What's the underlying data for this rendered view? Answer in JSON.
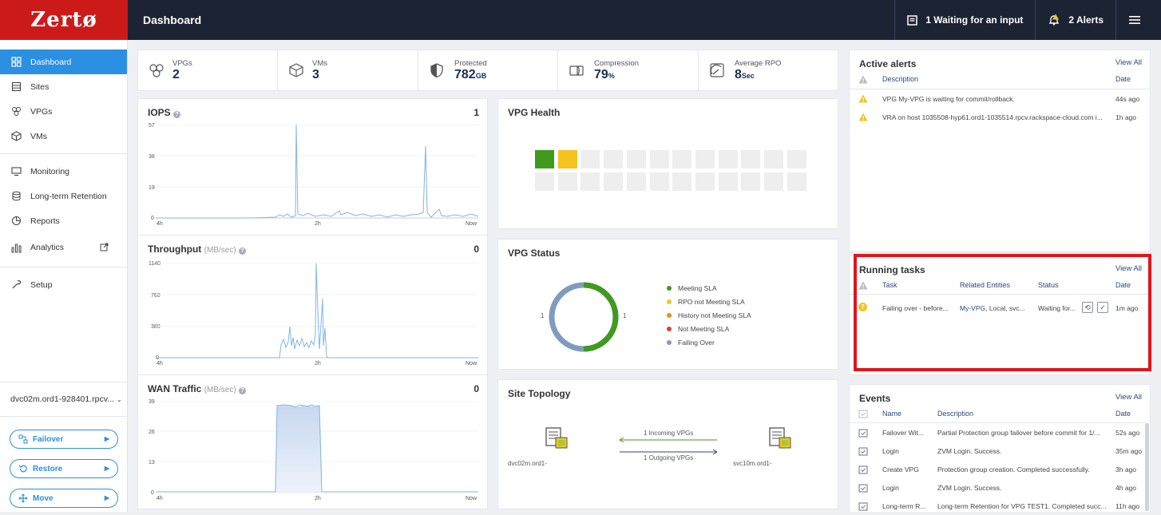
{
  "brand": {
    "logo": "Zertø",
    "color": "#cc1a1a"
  },
  "header": {
    "title": "Dashboard",
    "waiting": "1 Waiting for an input",
    "alerts": "2 Alerts"
  },
  "sidebar": {
    "items": [
      {
        "label": "Dashboard",
        "icon": "dashboard-icon",
        "active": true
      },
      {
        "label": "Sites",
        "icon": "sites-icon"
      },
      {
        "label": "VPGs",
        "icon": "vpgs-icon"
      },
      {
        "label": "VMs",
        "icon": "vms-icon"
      },
      {
        "label": "Monitoring",
        "icon": "monitor-icon"
      },
      {
        "label": "Long-term Retention",
        "icon": "database-icon"
      },
      {
        "label": "Reports",
        "icon": "reports-icon"
      },
      {
        "label": "Analytics",
        "icon": "analytics-icon"
      },
      {
        "label": "Setup",
        "icon": "wrench-icon"
      }
    ],
    "site": "dvc02m.ord1-928401.rpcv...",
    "buttons": {
      "failover": "Failover",
      "restore": "Restore",
      "move": "Move"
    }
  },
  "stats": [
    {
      "label": "VPGs",
      "value": "2",
      "unit": ""
    },
    {
      "label": "VMs",
      "value": "3",
      "unit": ""
    },
    {
      "label": "Protected",
      "value": "782",
      "unit": "GB"
    },
    {
      "label": "Compression",
      "value": "79",
      "unit": "%"
    },
    {
      "label": "Average RPO",
      "value": "8",
      "unit": "Sec"
    }
  ],
  "charts": {
    "iops": {
      "title": "IOPS",
      "unit": "",
      "value": "1",
      "yticks": [
        "57",
        "38",
        "19",
        "0"
      ],
      "xticks": [
        "4h",
        "2h",
        "Now"
      ]
    },
    "throughput": {
      "title": "Throughput",
      "unit": "(MB/sec)",
      "value": "0",
      "yticks": [
        "1140",
        "760",
        "380",
        "0"
      ],
      "xticks": [
        "4h",
        "2h",
        "Now"
      ]
    },
    "wan": {
      "title": "WAN Traffic",
      "unit": "(MB/sec)",
      "value": "0",
      "yticks": [
        "39",
        "26",
        "13",
        "0"
      ],
      "xticks": [
        "4h",
        "2h",
        "Now"
      ]
    }
  },
  "vpg_health": {
    "title": "VPG Health"
  },
  "vpg_status": {
    "title": "VPG Status",
    "left_count": "1",
    "right_count": "1",
    "legend": [
      {
        "label": "Meeting SLA",
        "color": "#3f9a1e"
      },
      {
        "label": "RPO not Meeting SLA",
        "color": "#f6c21e"
      },
      {
        "label": "History not Meeting SLA",
        "color": "#f08a1c"
      },
      {
        "label": "Not Meeting SLA",
        "color": "#e23b3b"
      },
      {
        "label": "Failing Over",
        "color": "#7f9cbf"
      }
    ]
  },
  "topology": {
    "title": "Site Topology",
    "left_site": "dvc02m.ord1-",
    "right_site": "svc10m.ord1-",
    "incoming": "1 Incoming VPGs",
    "outgoing": "1 Outgoing VPGs"
  },
  "alerts_panel": {
    "title": "Active alerts",
    "view_all": "View All",
    "headers": {
      "description": "Description",
      "date": "Date"
    },
    "rows": [
      {
        "description": "VPG My-VPG is waiting for commit/rollback.",
        "date": "44s ago"
      },
      {
        "description": "VRA on host 1035508-hyp61.ord1-1035514.rpcv.rackspace-cloud.com i...",
        "date": "1h ago"
      }
    ]
  },
  "tasks_panel": {
    "title": "Running tasks",
    "view_all": "View All",
    "headers": {
      "task": "Task",
      "entities": "Related Entities",
      "status": "Status",
      "date": "Date"
    },
    "rows": [
      {
        "task": "Failing over - before...",
        "entity_link": "My-VPG",
        "entity_rest": ", Local, svc...",
        "status": "Waiting for...",
        "date": "1m ago"
      }
    ]
  },
  "events_panel": {
    "title": "Events",
    "view_all": "View All",
    "headers": {
      "name": "Name",
      "description": "Description",
      "date": "Date"
    },
    "rows": [
      {
        "name": "Failover Wit...",
        "description": "Partial Protection group failover before commit for 1/...",
        "date": "52s ago"
      },
      {
        "name": "Login",
        "description": "ZVM Login. Success.",
        "date": "35m ago"
      },
      {
        "name": "Create VPG",
        "description": "Protection group creation. Completed successfully.",
        "date": "3h ago"
      },
      {
        "name": "Login",
        "description": "ZVM Login. Success.",
        "date": "4h ago"
      },
      {
        "name": "Long-term R...",
        "description": "Long-term Retention for VPG TEST1. Completed succ...",
        "date": "11h ago"
      }
    ]
  }
}
